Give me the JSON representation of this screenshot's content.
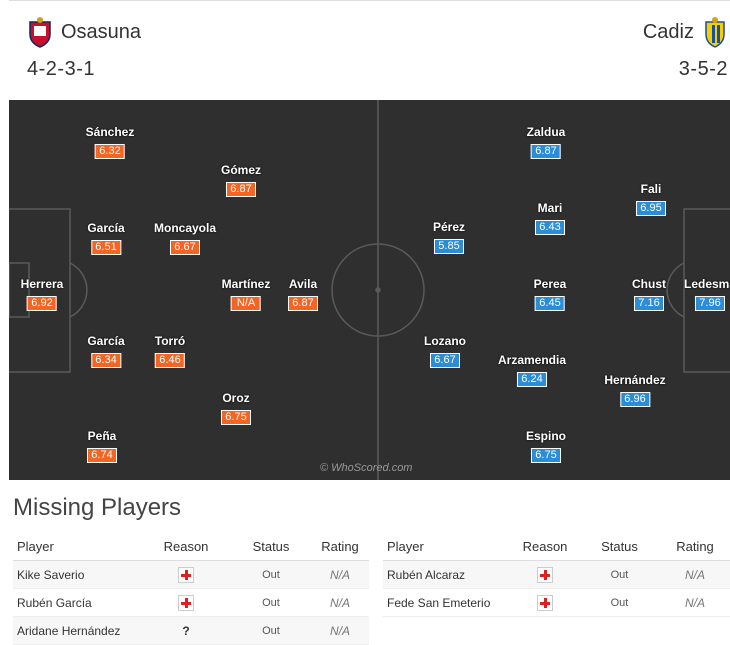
{
  "home": {
    "name": "Osasuna",
    "formation": "4-2-3-1",
    "color": "#f26522",
    "players": [
      {
        "name": "Herrera",
        "rating": "6.92"
      },
      {
        "name": "Sánchez",
        "rating": "6.32"
      },
      {
        "name": "García",
        "rating": "6.51"
      },
      {
        "name": "García",
        "rating": "6.34"
      },
      {
        "name": "Peña",
        "rating": "6.74"
      },
      {
        "name": "Moncayola",
        "rating": "6.67"
      },
      {
        "name": "Torró",
        "rating": "6.46"
      },
      {
        "name": "Gómez",
        "rating": "6.87"
      },
      {
        "name": "Martínez",
        "rating": "N/A"
      },
      {
        "name": "Oroz",
        "rating": "6.75"
      },
      {
        "name": "Avila",
        "rating": "6.87"
      }
    ]
  },
  "away": {
    "name": "Cadiz",
    "formation": "3-5-2",
    "color": "#2b8dd6",
    "players": [
      {
        "name": "Ledesma",
        "rating": "7.96"
      },
      {
        "name": "Fali",
        "rating": "6.95"
      },
      {
        "name": "Chust",
        "rating": "7.16"
      },
      {
        "name": "Hernández",
        "rating": "6.96"
      },
      {
        "name": "Zaldua",
        "rating": "6.87"
      },
      {
        "name": "Mari",
        "rating": "6.43"
      },
      {
        "name": "Perea",
        "rating": "6.45"
      },
      {
        "name": "Arzamendia",
        "rating": "6.24"
      },
      {
        "name": "Espino",
        "rating": "6.75"
      },
      {
        "name": "Pérez",
        "rating": "5.85"
      },
      {
        "name": "Lozano",
        "rating": "6.67"
      }
    ]
  },
  "watermark": "© WhoScored.com",
  "missing": {
    "title": "Missing Players",
    "headers": {
      "player": "Player",
      "reason": "Reason",
      "status": "Status",
      "rating": "Rating"
    },
    "home": [
      {
        "player": "Kike Saverio",
        "reason": "injury",
        "status": "Out",
        "rating": "N/A"
      },
      {
        "player": "Rubén García",
        "reason": "injury",
        "status": "Out",
        "rating": "N/A"
      },
      {
        "player": "Aridane Hernández",
        "reason": "?",
        "status": "Out",
        "rating": "N/A"
      }
    ],
    "away": [
      {
        "player": "Rubén Alcaraz",
        "reason": "injury",
        "status": "Out",
        "rating": "N/A"
      },
      {
        "player": "Fede San Emeterio",
        "reason": "injury",
        "status": "Out",
        "rating": "N/A"
      }
    ]
  }
}
